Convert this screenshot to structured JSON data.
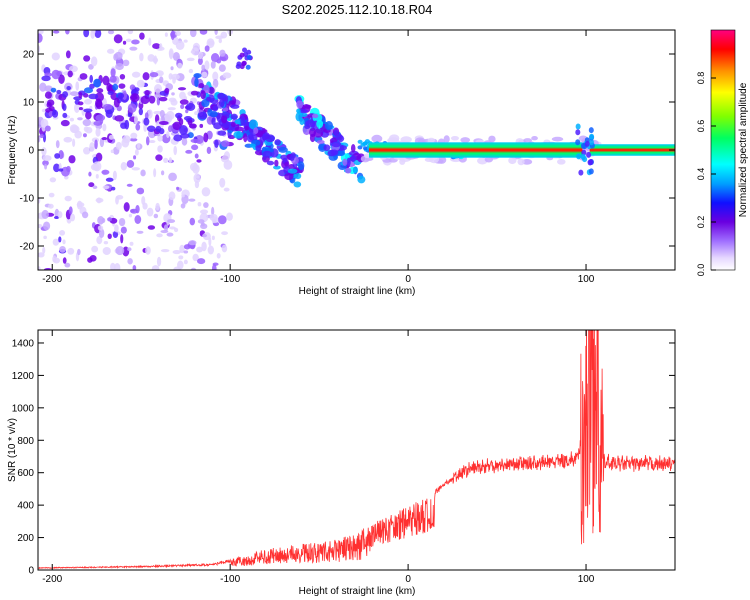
{
  "title": "S202.2025.112.10.18.R04",
  "chart_data": [
    {
      "type": "heatmap",
      "xlabel": "Height of straight line (km)",
      "ylabel": "Frequency (Hz)",
      "xlim": [
        -208,
        150
      ],
      "ylim": [
        -25,
        25
      ],
      "xticks": [
        -200,
        -100,
        0,
        100
      ],
      "yticks": [
        -20,
        -10,
        0,
        10,
        20
      ],
      "colorbar": {
        "label": "Normalized spectral amplitude",
        "range": [
          0,
          1
        ],
        "ticks": [
          "0.0",
          "0.2",
          "0.4",
          "0.6",
          "0.8"
        ],
        "colors": [
          "#ffffff",
          "#e6d8ff",
          "#a070ff",
          "#6a00e0",
          "#1010ff",
          "#00a0ff",
          "#00ffff",
          "#00ff60",
          "#80ff00",
          "#ffff00",
          "#ff9000",
          "#ff0000",
          "#ff0080"
        ]
      },
      "features": [
        {
          "name": "scattered noise",
          "x_range": [
            -208,
            -105
          ],
          "freq_range": [
            -25,
            25
          ]
        },
        {
          "name": "descending branch 1",
          "from": [
            -200,
            15
          ],
          "to": [
            -60,
            -5
          ]
        },
        {
          "name": "descending branch 2",
          "from": [
            -60,
            8
          ],
          "to": [
            -25,
            -4
          ]
        },
        {
          "name": "steady tone",
          "x_range": [
            -28,
            150
          ],
          "freq": 0,
          "peak_amplitude": 0.97
        }
      ]
    },
    {
      "type": "line",
      "xlabel": "Height of straight line (km)",
      "ylabel": "SNR (10 * v/v)",
      "xlim": [
        -208,
        150
      ],
      "ylim": [
        0,
        1480
      ],
      "xticks": [
        -200,
        -100,
        0,
        100
      ],
      "yticks": [
        0,
        200,
        400,
        600,
        800,
        1000,
        1200,
        1400
      ],
      "color": "#ff3030",
      "envelope_x": [
        -208,
        -150,
        -110,
        -95,
        -80,
        -60,
        -40,
        -30,
        -20,
        0,
        10,
        20,
        30,
        40,
        60,
        80,
        95,
        100,
        102,
        104,
        106,
        108,
        110,
        120,
        150
      ],
      "envelope_y": [
        15,
        25,
        40,
        80,
        130,
        160,
        190,
        230,
        290,
        400,
        440,
        540,
        620,
        655,
        670,
        680,
        700,
        900,
        1200,
        1480,
        1100,
        700,
        680,
        670,
        670
      ]
    }
  ]
}
